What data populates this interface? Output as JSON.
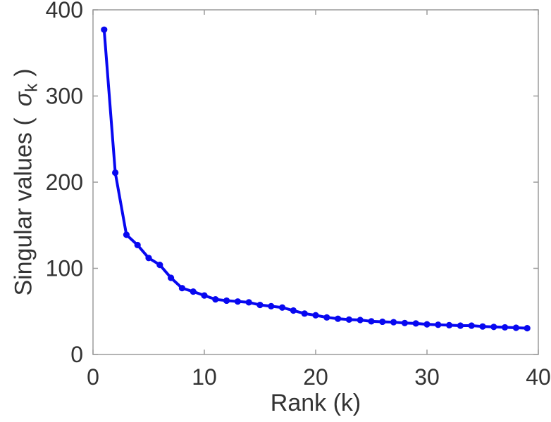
{
  "colors": {
    "background": "#ffffff",
    "axis": "#9b9b9b",
    "text": "#333333",
    "line": "#0808f0"
  },
  "chart_data": {
    "type": "line",
    "title": "",
    "xlabel": "Rank (k)",
    "ylabel_prefix": "Singular values (",
    "ylabel_symbol": "σ",
    "ylabel_subscript": "k",
    "ylabel_suffix": ")",
    "xlim": [
      0,
      40
    ],
    "ylim": [
      0,
      400
    ],
    "xticks": [
      0,
      10,
      20,
      30,
      40
    ],
    "yticks": [
      0,
      100,
      200,
      300,
      400
    ],
    "grid": false,
    "legend": null,
    "marker": "circle",
    "line_width": 4,
    "marker_radius": 4.6,
    "series": [
      {
        "name": "singular-values",
        "x": [
          1,
          2,
          3,
          4,
          5,
          6,
          7,
          8,
          9,
          10,
          11,
          12,
          13,
          14,
          15,
          16,
          17,
          18,
          19,
          20,
          21,
          22,
          23,
          24,
          25,
          26,
          27,
          28,
          29,
          30,
          31,
          32,
          33,
          34,
          35,
          36,
          37,
          38,
          39
        ],
        "y": [
          377,
          211,
          139,
          127,
          112,
          104,
          89,
          77,
          73,
          68.5,
          64,
          62.5,
          61.5,
          60.5,
          57.5,
          56,
          54.5,
          51,
          47.5,
          45.5,
          43,
          41.5,
          40.5,
          40,
          38.5,
          38,
          37.5,
          36.5,
          36,
          35,
          34.5,
          34,
          33.5,
          33.5,
          32.5,
          32,
          31.5,
          31,
          30.5
        ]
      }
    ]
  }
}
